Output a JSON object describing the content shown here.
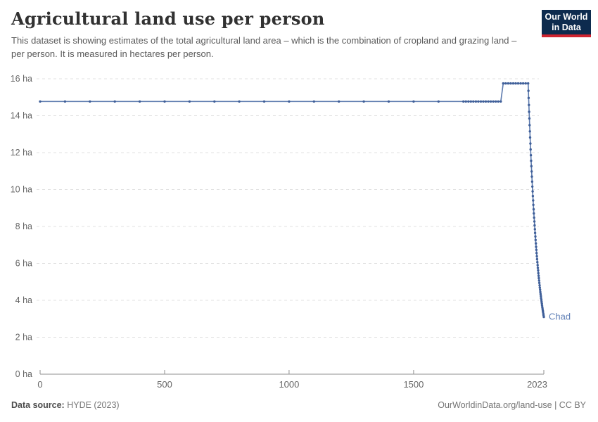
{
  "header": {
    "title": "Agricultural land use per person",
    "subtitle": "This dataset is showing estimates of the total agricultural land area – which is the combination of cropland and grazing land – per person. It is measured in hectares per person.",
    "logo": {
      "line1": "Our World",
      "line2": "in Data"
    }
  },
  "footer": {
    "data_source_label": "Data source:",
    "data_source_value": "HYDE (2023)",
    "attribution": "OurWorldinData.org/land-use | CC BY"
  },
  "colors": {
    "line": "#5b79ad",
    "marker": "#3f5f99",
    "end_label": "#6181b7",
    "gridline": "#e0e0e0",
    "axis": "#8f8f8f",
    "tick_label": "#666666",
    "logo_bg": "#0d2b4e",
    "logo_bar": "#cf2430"
  },
  "chart_data": {
    "type": "line",
    "title": "Agricultural land use per person",
    "unit": "ha",
    "xlim": [
      0,
      2023
    ],
    "ylim": [
      0,
      16
    ],
    "x_ticks": [
      0,
      500,
      1000,
      1500,
      2023
    ],
    "y_ticks": [
      0,
      2,
      4,
      6,
      8,
      10,
      12,
      14,
      16
    ],
    "y_tick_suffix": " ha",
    "grid": "horizontal-dashed",
    "legend_position": "end-of-line-label",
    "end_label": "Chad",
    "series": [
      {
        "name": "Chad",
        "points": [
          [
            0,
            14.77
          ],
          [
            100,
            14.77
          ],
          [
            200,
            14.77
          ],
          [
            300,
            14.77
          ],
          [
            400,
            14.77
          ],
          [
            500,
            14.77
          ],
          [
            600,
            14.77
          ],
          [
            700,
            14.77
          ],
          [
            800,
            14.77
          ],
          [
            900,
            14.77
          ],
          [
            1000,
            14.77
          ],
          [
            1100,
            14.77
          ],
          [
            1200,
            14.77
          ],
          [
            1300,
            14.77
          ],
          [
            1400,
            14.77
          ],
          [
            1500,
            14.77
          ],
          [
            1600,
            14.77
          ],
          [
            1700,
            14.77
          ],
          [
            1710,
            14.77
          ],
          [
            1720,
            14.77
          ],
          [
            1730,
            14.77
          ],
          [
            1740,
            14.77
          ],
          [
            1750,
            14.77
          ],
          [
            1760,
            14.77
          ],
          [
            1770,
            14.77
          ],
          [
            1780,
            14.77
          ],
          [
            1790,
            14.77
          ],
          [
            1800,
            14.77
          ],
          [
            1810,
            14.77
          ],
          [
            1820,
            14.77
          ],
          [
            1830,
            14.77
          ],
          [
            1840,
            14.77
          ],
          [
            1850,
            14.77
          ],
          [
            1860,
            15.75
          ],
          [
            1870,
            15.75
          ],
          [
            1880,
            15.75
          ],
          [
            1890,
            15.75
          ],
          [
            1900,
            15.75
          ],
          [
            1910,
            15.75
          ],
          [
            1920,
            15.75
          ],
          [
            1930,
            15.75
          ],
          [
            1940,
            15.75
          ],
          [
            1950,
            15.75
          ],
          [
            1960,
            15.75
          ],
          [
            1961,
            15.35
          ],
          [
            1962,
            14.96
          ],
          [
            1963,
            14.58
          ],
          [
            1964,
            14.21
          ],
          [
            1965,
            13.85
          ],
          [
            1966,
            13.49
          ],
          [
            1967,
            13.15
          ],
          [
            1968,
            12.82
          ],
          [
            1969,
            12.49
          ],
          [
            1970,
            12.17
          ],
          [
            1971,
            11.86
          ],
          [
            1972,
            11.56
          ],
          [
            1973,
            11.27
          ],
          [
            1974,
            10.98
          ],
          [
            1975,
            10.7
          ],
          [
            1976,
            10.43
          ],
          [
            1977,
            10.16
          ],
          [
            1978,
            9.9
          ],
          [
            1979,
            9.65
          ],
          [
            1980,
            9.41
          ],
          [
            1981,
            9.17
          ],
          [
            1982,
            8.93
          ],
          [
            1983,
            8.71
          ],
          [
            1984,
            8.48
          ],
          [
            1985,
            8.27
          ],
          [
            1986,
            8.06
          ],
          [
            1987,
            7.85
          ],
          [
            1988,
            7.65
          ],
          [
            1989,
            7.46
          ],
          [
            1990,
            7.27
          ],
          [
            1991,
            7.08
          ],
          [
            1992,
            6.9
          ],
          [
            1993,
            6.73
          ],
          [
            1994,
            6.56
          ],
          [
            1995,
            6.39
          ],
          [
            1996,
            6.23
          ],
          [
            1997,
            6.07
          ],
          [
            1998,
            5.91
          ],
          [
            1999,
            5.76
          ],
          [
            2000,
            5.62
          ],
          [
            2001,
            5.47
          ],
          [
            2002,
            5.33
          ],
          [
            2003,
            5.2
          ],
          [
            2004,
            5.07
          ],
          [
            2005,
            4.94
          ],
          [
            2006,
            4.81
          ],
          [
            2007,
            4.69
          ],
          [
            2008,
            4.57
          ],
          [
            2009,
            4.45
          ],
          [
            2010,
            4.34
          ],
          [
            2011,
            4.23
          ],
          [
            2012,
            4.12
          ],
          [
            2013,
            4.02
          ],
          [
            2014,
            3.92
          ],
          [
            2015,
            3.82
          ],
          [
            2016,
            3.72
          ],
          [
            2017,
            3.62
          ],
          [
            2018,
            3.53
          ],
          [
            2019,
            3.44
          ],
          [
            2020,
            3.36
          ],
          [
            2021,
            3.27
          ],
          [
            2022,
            3.19
          ],
          [
            2023,
            3.1
          ]
        ]
      }
    ]
  }
}
